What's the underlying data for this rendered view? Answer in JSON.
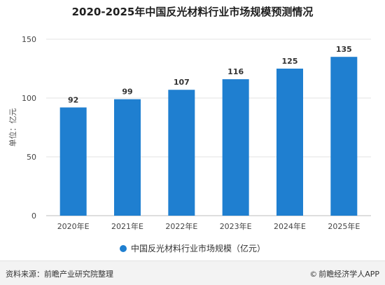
{
  "chart_data": {
    "type": "bar",
    "title": "2020-2025年中国反光材料行业市场规模预测情况",
    "categories": [
      "2020年E",
      "2021年E",
      "2022年E",
      "2023年E",
      "2024年E",
      "2025年E"
    ],
    "series": [
      {
        "name": "中国反光材料行业市场规模（亿元）",
        "values": [
          92,
          99,
          107,
          116,
          125,
          135
        ]
      }
    ],
    "ylabel": "单位：亿元",
    "xlabel": "",
    "ylim": [
      0,
      150
    ],
    "yticks": [
      0,
      50,
      100,
      150
    ],
    "grid": true,
    "legend": "bottom",
    "bar_color": "#1f7fd0"
  },
  "footer": {
    "source": "资料来源：前瞻产业研究院整理",
    "copyright_symbol": "©",
    "brand": "前瞻经济学人APP"
  }
}
